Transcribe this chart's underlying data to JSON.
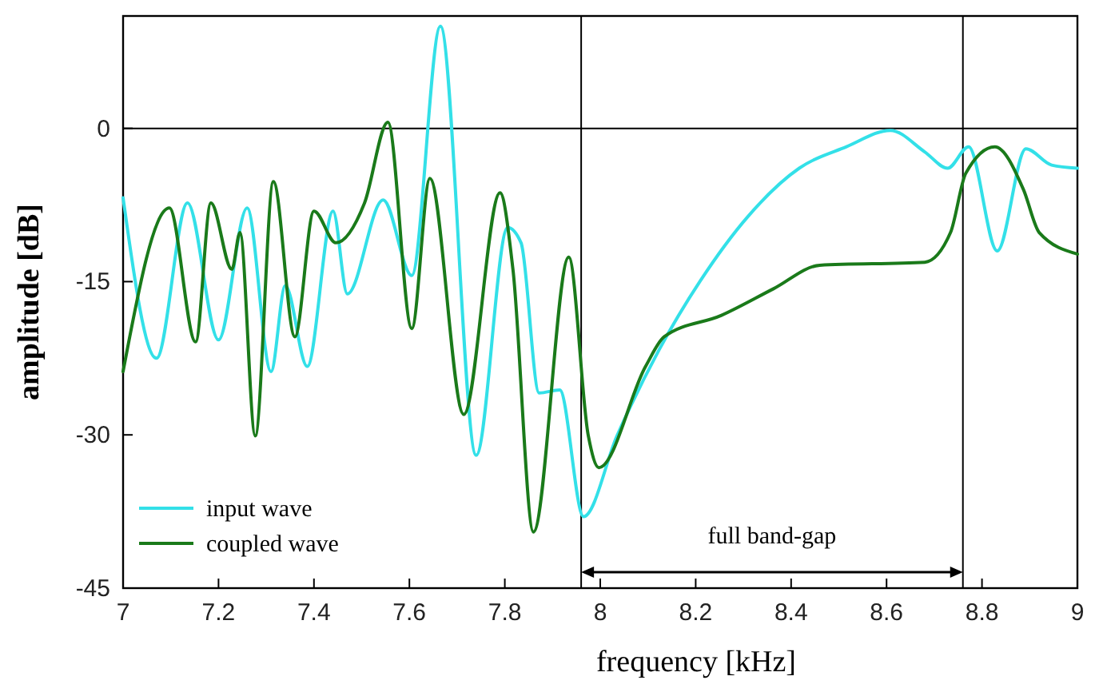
{
  "chart_data": {
    "type": "line",
    "xlabel": "frequency [kHz]",
    "ylabel": "amplitude [dB]",
    "xlim": [
      7,
      9
    ],
    "ylim": [
      -45,
      11
    ],
    "xticks": [
      7,
      7.2,
      7.4,
      7.6,
      7.8,
      8,
      8.2,
      8.4,
      8.6,
      8.8,
      9
    ],
    "yticks": [
      -45,
      -30,
      -15,
      0
    ],
    "grid": false,
    "legend": "bottom left",
    "line_style": "solid",
    "ref_lines": [
      {
        "axis": "y",
        "value": 0,
        "color": "#000000"
      },
      {
        "axis": "x",
        "value": 7.96,
        "color": "#000000"
      },
      {
        "axis": "x",
        "value": 8.76,
        "color": "#000000"
      }
    ],
    "annotations": [
      "full band-gap"
    ],
    "series": [
      {
        "name": "input wave",
        "color": "#33e0e8",
        "x": [
          7.0,
          7.07,
          7.135,
          7.2,
          7.26,
          7.31,
          7.34,
          7.386,
          7.44,
          7.47,
          7.545,
          7.605,
          7.665,
          7.74,
          7.806,
          7.834,
          7.872,
          7.915,
          7.965,
          8.035,
          8.123,
          8.21,
          8.31,
          8.417,
          8.516,
          8.608,
          8.68,
          8.728,
          8.772,
          8.832,
          8.892,
          8.946,
          9.0
        ],
        "values": [
          -6.8,
          -22.5,
          -7.3,
          -20.7,
          -7.8,
          -23.8,
          -15.4,
          -23.3,
          -8.1,
          -16.2,
          -7.0,
          -14.4,
          10.0,
          -32,
          -9.7,
          -11.2,
          -25.9,
          -25.6,
          -38,
          -30.1,
          -21.7,
          -14.9,
          -8.6,
          -3.9,
          -1.8,
          -0.2,
          -2.3,
          -3.9,
          -1.8,
          -12,
          -2.0,
          -3.6,
          -3.9
        ]
      },
      {
        "name": "coupled wave",
        "color": "#1a7a1a",
        "x": [
          7.0,
          7.097,
          7.152,
          7.184,
          7.228,
          7.245,
          7.277,
          7.315,
          7.36,
          7.4,
          7.446,
          7.506,
          7.555,
          7.605,
          7.643,
          7.714,
          7.79,
          7.817,
          7.86,
          7.934,
          7.975,
          7.997,
          8.095,
          8.134,
          8.254,
          8.363,
          8.46,
          8.68,
          8.734,
          8.766,
          8.827,
          8.887,
          8.92,
          9.0
        ],
        "values": [
          -23.8,
          -7.8,
          -20.9,
          -7.3,
          -13.8,
          -10.2,
          -30.1,
          -5.2,
          -20.4,
          -8.1,
          -11.2,
          -7.3,
          0.6,
          -19.6,
          -4.9,
          -28,
          -6.3,
          -13.8,
          -39.5,
          -12.6,
          -30.1,
          -33.2,
          -23.3,
          -20.4,
          -18.3,
          -15.7,
          -13.4,
          -13.1,
          -10.2,
          -4.4,
          -1.8,
          -6,
          -10.2,
          -12.3
        ]
      }
    ]
  }
}
